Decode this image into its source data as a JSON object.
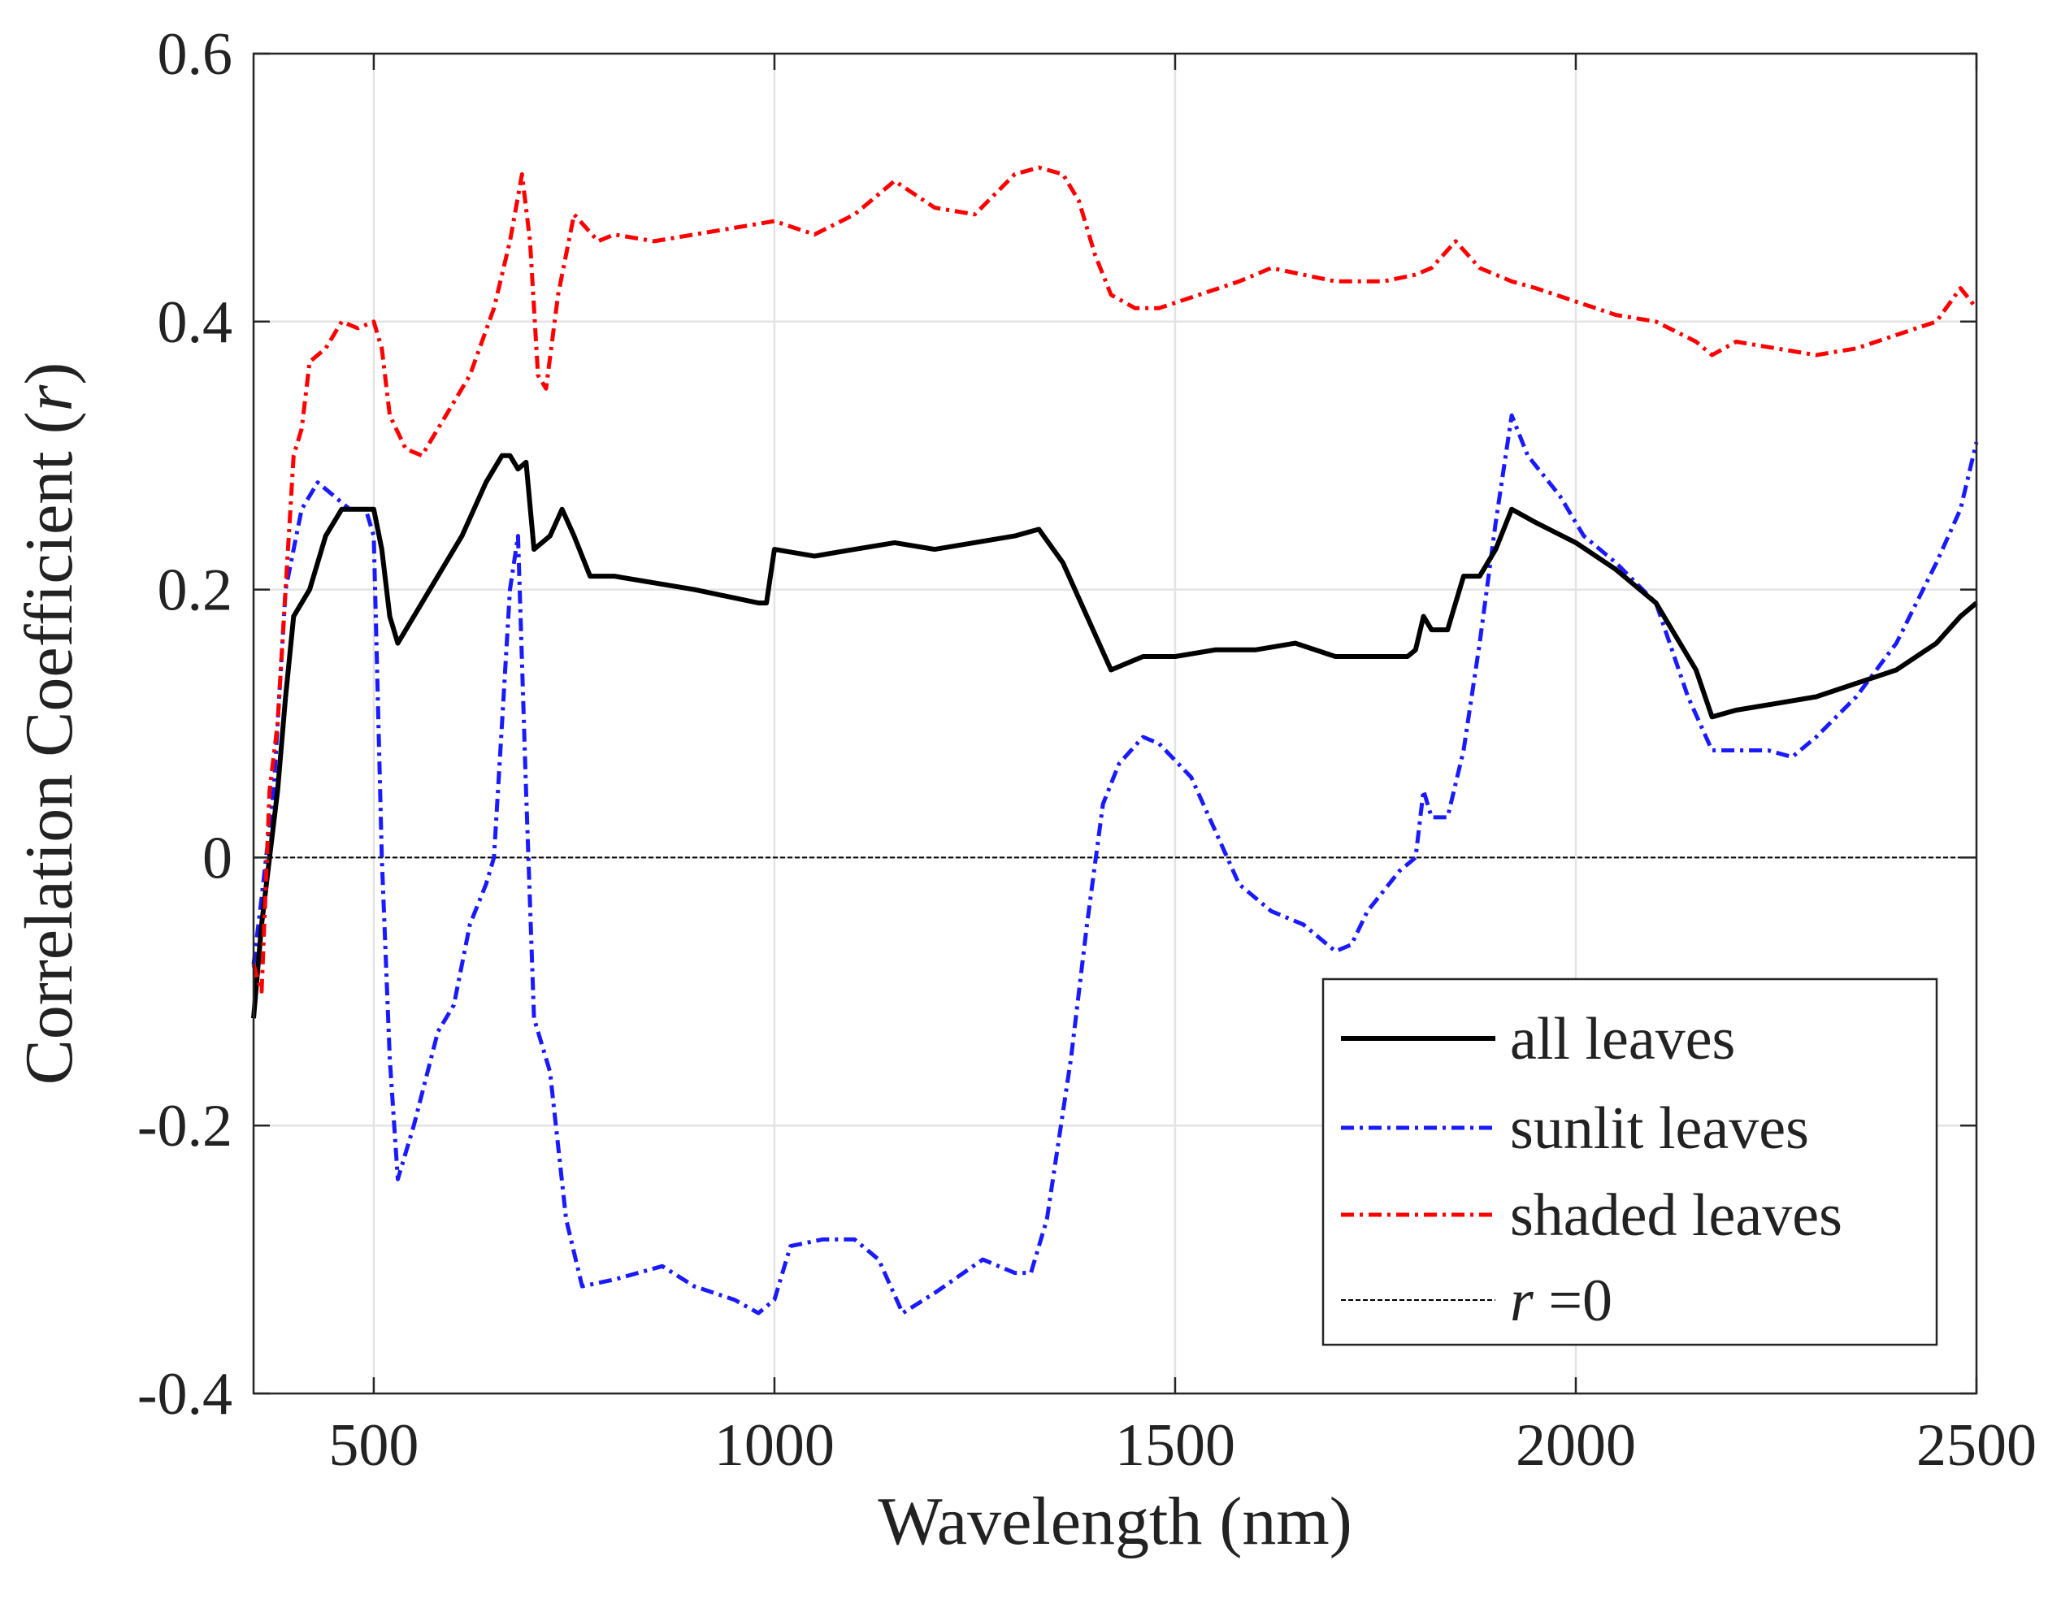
{
  "chart_data": {
    "type": "line",
    "title": "",
    "xlabel": "Wavelength (nm)",
    "ylabel_main": "Correlation Coefficient (",
    "ylabel_var": "r",
    "ylabel_end": ")",
    "xlim": [
      350,
      2500
    ],
    "ylim": [
      -0.4,
      0.6
    ],
    "grid": true,
    "legend_position": "bottom-right",
    "x_ticks": [
      500,
      1000,
      1500,
      2000,
      2500
    ],
    "x_tick_labels": [
      "500",
      "1000",
      "1500",
      "2000",
      "2500"
    ],
    "y_ticks": [
      -0.4,
      -0.2,
      0,
      0.2,
      0.4,
      0.6
    ],
    "y_tick_labels": [
      "-0.4",
      "-0.2",
      "0",
      "0.2",
      "0.4",
      "0.6"
    ],
    "series": [
      {
        "name": "all leaves",
        "color": "#000000",
        "style": "solid",
        "points": [
          [
            350,
            -0.12
          ],
          [
            360,
            -0.05
          ],
          [
            370,
            0.0
          ],
          [
            380,
            0.05
          ],
          [
            390,
            0.12
          ],
          [
            400,
            0.18
          ],
          [
            420,
            0.2
          ],
          [
            440,
            0.24
          ],
          [
            460,
            0.26
          ],
          [
            480,
            0.26
          ],
          [
            500,
            0.26
          ],
          [
            510,
            0.23
          ],
          [
            520,
            0.18
          ],
          [
            530,
            0.16
          ],
          [
            550,
            0.18
          ],
          [
            580,
            0.21
          ],
          [
            610,
            0.24
          ],
          [
            640,
            0.28
          ],
          [
            660,
            0.3
          ],
          [
            670,
            0.3
          ],
          [
            680,
            0.29
          ],
          [
            690,
            0.295
          ],
          [
            700,
            0.23
          ],
          [
            720,
            0.24
          ],
          [
            735,
            0.26
          ],
          [
            750,
            0.24
          ],
          [
            770,
            0.21
          ],
          [
            800,
            0.21
          ],
          [
            900,
            0.2
          ],
          [
            980,
            0.19
          ],
          [
            990,
            0.19
          ],
          [
            1000,
            0.23
          ],
          [
            1050,
            0.225
          ],
          [
            1100,
            0.23
          ],
          [
            1150,
            0.235
          ],
          [
            1200,
            0.23
          ],
          [
            1300,
            0.24
          ],
          [
            1330,
            0.245
          ],
          [
            1360,
            0.22
          ],
          [
            1390,
            0.18
          ],
          [
            1420,
            0.14
          ],
          [
            1460,
            0.15
          ],
          [
            1500,
            0.15
          ],
          [
            1550,
            0.155
          ],
          [
            1600,
            0.155
          ],
          [
            1650,
            0.16
          ],
          [
            1700,
            0.15
          ],
          [
            1750,
            0.15
          ],
          [
            1790,
            0.15
          ],
          [
            1800,
            0.155
          ],
          [
            1810,
            0.18
          ],
          [
            1820,
            0.17
          ],
          [
            1840,
            0.17
          ],
          [
            1860,
            0.21
          ],
          [
            1880,
            0.21
          ],
          [
            1900,
            0.23
          ],
          [
            1920,
            0.26
          ],
          [
            1950,
            0.25
          ],
          [
            2000,
            0.235
          ],
          [
            2050,
            0.215
          ],
          [
            2100,
            0.19
          ],
          [
            2150,
            0.14
          ],
          [
            2170,
            0.105
          ],
          [
            2200,
            0.11
          ],
          [
            2250,
            0.115
          ],
          [
            2300,
            0.12
          ],
          [
            2350,
            0.13
          ],
          [
            2400,
            0.14
          ],
          [
            2450,
            0.16
          ],
          [
            2480,
            0.18
          ],
          [
            2500,
            0.19
          ]
        ]
      },
      {
        "name": "sunlit leaves",
        "color": "#1a1aff",
        "style": "dashdot",
        "points": [
          [
            350,
            -0.08
          ],
          [
            360,
            -0.03
          ],
          [
            375,
            0.05
          ],
          [
            390,
            0.2
          ],
          [
            410,
            0.26
          ],
          [
            430,
            0.28
          ],
          [
            450,
            0.27
          ],
          [
            470,
            0.26
          ],
          [
            490,
            0.26
          ],
          [
            500,
            0.24
          ],
          [
            510,
            0.0
          ],
          [
            520,
            -0.15
          ],
          [
            530,
            -0.24
          ],
          [
            550,
            -0.2
          ],
          [
            580,
            -0.13
          ],
          [
            600,
            -0.11
          ],
          [
            620,
            -0.05
          ],
          [
            640,
            -0.02
          ],
          [
            650,
            0.0
          ],
          [
            660,
            0.1
          ],
          [
            670,
            0.2
          ],
          [
            680,
            0.24
          ],
          [
            690,
            0.05
          ],
          [
            700,
            -0.12
          ],
          [
            720,
            -0.16
          ],
          [
            740,
            -0.27
          ],
          [
            760,
            -0.32
          ],
          [
            800,
            -0.315
          ],
          [
            860,
            -0.305
          ],
          [
            900,
            -0.32
          ],
          [
            950,
            -0.33
          ],
          [
            980,
            -0.34
          ],
          [
            1000,
            -0.33
          ],
          [
            1020,
            -0.29
          ],
          [
            1060,
            -0.285
          ],
          [
            1100,
            -0.285
          ],
          [
            1130,
            -0.3
          ],
          [
            1160,
            -0.34
          ],
          [
            1200,
            -0.325
          ],
          [
            1260,
            -0.3
          ],
          [
            1300,
            -0.31
          ],
          [
            1320,
            -0.31
          ],
          [
            1340,
            -0.27
          ],
          [
            1370,
            -0.15
          ],
          [
            1390,
            -0.05
          ],
          [
            1410,
            0.04
          ],
          [
            1430,
            0.07
          ],
          [
            1460,
            0.09
          ],
          [
            1480,
            0.085
          ],
          [
            1520,
            0.06
          ],
          [
            1550,
            0.02
          ],
          [
            1580,
            -0.02
          ],
          [
            1620,
            -0.04
          ],
          [
            1660,
            -0.05
          ],
          [
            1700,
            -0.07
          ],
          [
            1720,
            -0.065
          ],
          [
            1740,
            -0.04
          ],
          [
            1780,
            -0.01
          ],
          [
            1800,
            0.0
          ],
          [
            1810,
            0.05
          ],
          [
            1820,
            0.03
          ],
          [
            1840,
            0.03
          ],
          [
            1860,
            0.08
          ],
          [
            1880,
            0.16
          ],
          [
            1900,
            0.25
          ],
          [
            1920,
            0.33
          ],
          [
            1940,
            0.3
          ],
          [
            1980,
            0.27
          ],
          [
            2010,
            0.24
          ],
          [
            2050,
            0.22
          ],
          [
            2100,
            0.19
          ],
          [
            2140,
            0.12
          ],
          [
            2170,
            0.08
          ],
          [
            2200,
            0.08
          ],
          [
            2240,
            0.08
          ],
          [
            2270,
            0.075
          ],
          [
            2300,
            0.09
          ],
          [
            2350,
            0.12
          ],
          [
            2400,
            0.16
          ],
          [
            2450,
            0.22
          ],
          [
            2480,
            0.26
          ],
          [
            2500,
            0.31
          ]
        ]
      },
      {
        "name": "shaded leaves",
        "color": "#ff0000",
        "style": "dashdot",
        "points": [
          [
            350,
            -0.08
          ],
          [
            360,
            -0.1
          ],
          [
            370,
            0.05
          ],
          [
            380,
            0.1
          ],
          [
            390,
            0.2
          ],
          [
            400,
            0.3
          ],
          [
            410,
            0.32
          ],
          [
            420,
            0.37
          ],
          [
            440,
            0.38
          ],
          [
            460,
            0.4
          ],
          [
            480,
            0.395
          ],
          [
            500,
            0.4
          ],
          [
            510,
            0.38
          ],
          [
            520,
            0.33
          ],
          [
            540,
            0.305
          ],
          [
            560,
            0.3
          ],
          [
            590,
            0.33
          ],
          [
            620,
            0.36
          ],
          [
            650,
            0.41
          ],
          [
            670,
            0.46
          ],
          [
            685,
            0.51
          ],
          [
            695,
            0.46
          ],
          [
            705,
            0.36
          ],
          [
            715,
            0.35
          ],
          [
            730,
            0.42
          ],
          [
            750,
            0.48
          ],
          [
            780,
            0.46
          ],
          [
            800,
            0.465
          ],
          [
            850,
            0.46
          ],
          [
            900,
            0.465
          ],
          [
            950,
            0.47
          ],
          [
            1000,
            0.475
          ],
          [
            1050,
            0.465
          ],
          [
            1100,
            0.48
          ],
          [
            1150,
            0.505
          ],
          [
            1200,
            0.485
          ],
          [
            1250,
            0.48
          ],
          [
            1300,
            0.51
          ],
          [
            1330,
            0.515
          ],
          [
            1360,
            0.51
          ],
          [
            1380,
            0.49
          ],
          [
            1400,
            0.45
          ],
          [
            1420,
            0.42
          ],
          [
            1450,
            0.41
          ],
          [
            1480,
            0.41
          ],
          [
            1530,
            0.42
          ],
          [
            1580,
            0.43
          ],
          [
            1620,
            0.44
          ],
          [
            1660,
            0.435
          ],
          [
            1700,
            0.43
          ],
          [
            1760,
            0.43
          ],
          [
            1800,
            0.435
          ],
          [
            1820,
            0.44
          ],
          [
            1850,
            0.46
          ],
          [
            1880,
            0.44
          ],
          [
            1920,
            0.43
          ],
          [
            1950,
            0.425
          ],
          [
            2000,
            0.415
          ],
          [
            2050,
            0.405
          ],
          [
            2100,
            0.4
          ],
          [
            2150,
            0.385
          ],
          [
            2170,
            0.375
          ],
          [
            2200,
            0.385
          ],
          [
            2250,
            0.38
          ],
          [
            2300,
            0.375
          ],
          [
            2350,
            0.38
          ],
          [
            2400,
            0.39
          ],
          [
            2450,
            0.4
          ],
          [
            2480,
            0.425
          ],
          [
            2500,
            0.41
          ]
        ]
      },
      {
        "name": "r =0",
        "legend_var": "r",
        "legend_rest": " =0",
        "color": "#000000",
        "style": "dotted-thin",
        "points": [
          [
            350,
            0
          ],
          [
            2500,
            0
          ]
        ]
      }
    ]
  }
}
